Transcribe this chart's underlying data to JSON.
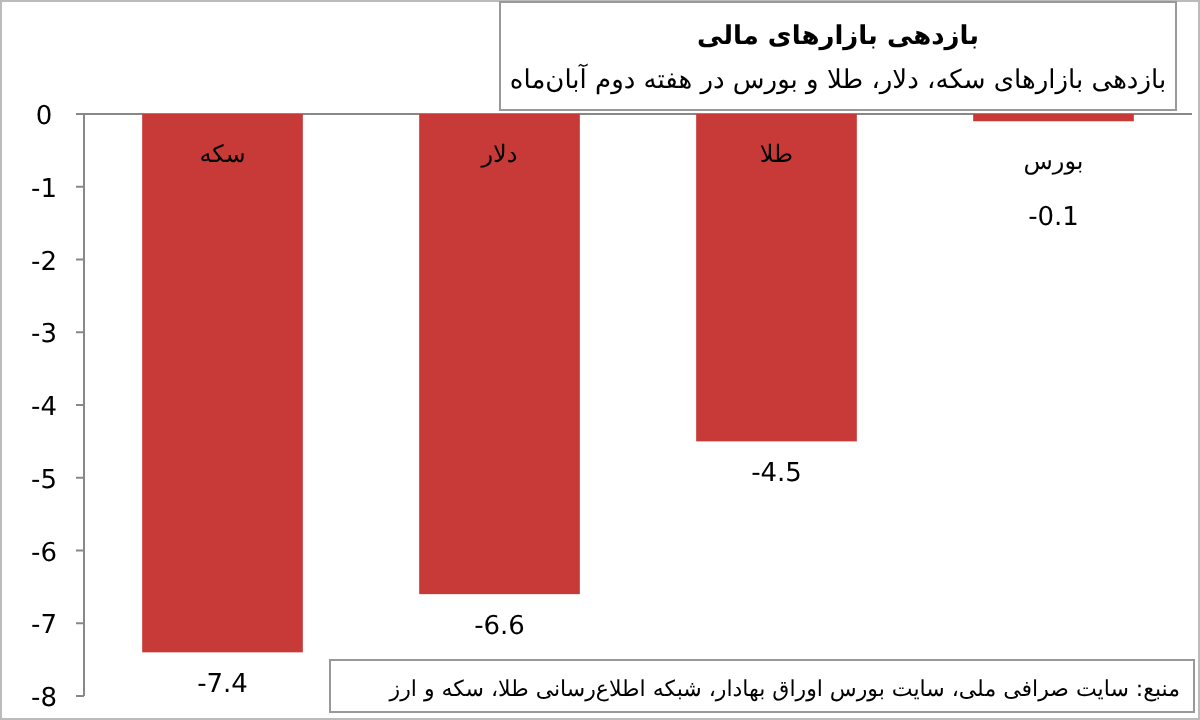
{
  "chart_data": {
    "type": "bar",
    "title": "بازدهی بازارهای مالی",
    "subtitle": "بازدهی بازارهای سکه، دلار، طلا و بورس در هفته دوم آبان‌ماه",
    "categories": [
      "سکه",
      "دلار",
      "طلا",
      "بورس"
    ],
    "values": [
      -7.4,
      -6.6,
      -4.5,
      -0.1
    ],
    "color": "#c83a37",
    "ylim": [
      -8,
      0
    ],
    "yticks": [
      0,
      -1,
      -2,
      -3,
      -4,
      -5,
      -6,
      -7,
      -8
    ],
    "data_labels": true,
    "grid": false,
    "annotations": [
      "منبع: سایت صرافی ملی، سایت بورس اوراق بهادار، شبکه اطلاع‌رسانی طلا، سکه و ارز"
    ]
  }
}
